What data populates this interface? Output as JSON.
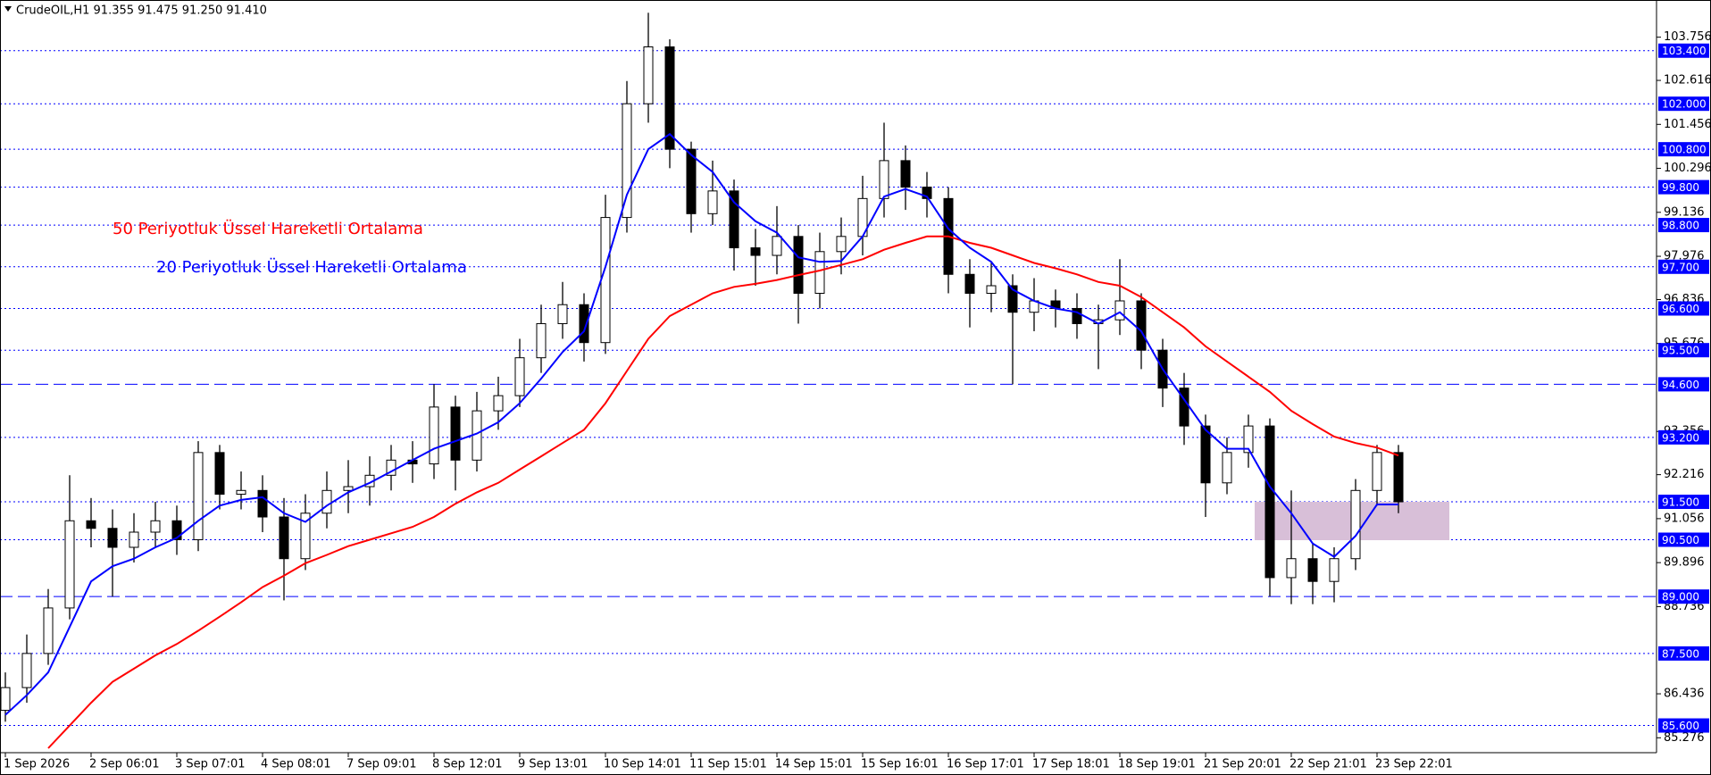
{
  "chart_data": {
    "type": "candlestick",
    "header": "CrudeOIL,H1  91.355 91.475 91.250 91.410",
    "categories": [
      "1 Sep 2026",
      null,
      null,
      null,
      "2 Sep 06:01",
      null,
      null,
      null,
      "3 Sep 07:01",
      null,
      null,
      null,
      "4 Sep 08:01",
      null,
      null,
      null,
      "7 Sep 09:01",
      null,
      null,
      null,
      "8 Sep 12:01",
      null,
      null,
      null,
      "9 Sep 13:01",
      null,
      null,
      null,
      "10 Sep 14:01",
      null,
      null,
      null,
      "11 Sep 15:01",
      null,
      null,
      null,
      "14 Sep 15:01",
      null,
      null,
      null,
      "15 Sep 16:01",
      null,
      null,
      null,
      "16 Sep 17:01",
      null,
      null,
      null,
      "17 Sep 18:01",
      null,
      null,
      null,
      "18 Sep 19:01",
      null,
      null,
      null,
      "21 Sep 20:01",
      null,
      null,
      null,
      "22 Sep 21:01",
      null,
      null,
      null,
      "23 Sep 22:01",
      null
    ],
    "open": [
      86.0,
      86.6,
      87.5,
      88.7,
      91.0,
      90.8,
      90.3,
      90.7,
      91.0,
      90.5,
      92.8,
      91.7,
      91.8,
      91.1,
      90.0,
      91.2,
      91.8,
      91.9,
      92.2,
      92.6,
      92.5,
      94.0,
      92.6,
      93.9,
      94.3,
      95.3,
      96.2,
      96.7,
      95.7,
      99.0,
      102.0,
      103.5,
      100.8,
      99.1,
      99.7,
      98.2,
      98.0,
      98.5,
      97.0,
      98.1,
      98.5,
      99.5,
      100.5,
      99.8,
      99.5,
      97.5,
      97.0,
      97.2,
      96.5,
      96.8,
      96.6,
      96.2,
      96.3,
      96.8,
      95.5,
      94.5,
      93.5,
      92.0,
      92.8,
      93.5,
      89.5,
      90.0,
      89.4,
      90.0,
      91.8,
      92.8
    ],
    "high": [
      87.0,
      88.0,
      89.2,
      92.2,
      91.6,
      91.3,
      91.2,
      91.5,
      91.4,
      93.1,
      93.0,
      92.3,
      92.2,
      91.6,
      91.7,
      92.3,
      92.6,
      92.7,
      93.0,
      93.1,
      94.6,
      94.3,
      94.4,
      94.8,
      95.8,
      96.7,
      97.3,
      97.0,
      99.6,
      102.6,
      104.4,
      103.7,
      101.0,
      100.5,
      100.0,
      98.7,
      99.3,
      98.8,
      98.6,
      99.0,
      100.1,
      101.5,
      100.9,
      100.2,
      99.8,
      97.9,
      97.8,
      97.5,
      97.4,
      97.1,
      97.0,
      96.7,
      97.9,
      97.0,
      95.8,
      94.9,
      93.8,
      93.2,
      93.8,
      93.7,
      91.8,
      90.4,
      90.3,
      92.1,
      93.0,
      93.0
    ],
    "low": [
      85.7,
      86.2,
      87.2,
      88.4,
      90.3,
      89.0,
      89.9,
      90.3,
      90.1,
      90.2,
      91.3,
      91.3,
      90.7,
      88.9,
      89.7,
      90.8,
      91.2,
      91.4,
      91.8,
      92.0,
      92.1,
      91.8,
      92.3,
      93.4,
      94.0,
      94.9,
      95.8,
      95.2,
      95.4,
      98.6,
      101.5,
      100.3,
      98.6,
      98.8,
      97.6,
      97.2,
      97.5,
      96.2,
      96.6,
      97.5,
      98.0,
      99.0,
      99.2,
      99.0,
      97.0,
      96.1,
      96.5,
      94.6,
      96.0,
      96.1,
      95.8,
      95.0,
      95.9,
      95.0,
      94.0,
      93.0,
      91.1,
      91.7,
      92.4,
      89.0,
      88.8,
      88.8,
      88.85,
      89.7,
      91.4,
      91.2
    ],
    "close": [
      86.6,
      87.5,
      88.7,
      91.0,
      90.8,
      90.3,
      90.7,
      91.0,
      90.5,
      92.8,
      91.7,
      91.8,
      91.1,
      90.0,
      91.2,
      91.8,
      91.9,
      92.2,
      92.6,
      92.5,
      94.0,
      92.6,
      93.9,
      94.3,
      95.3,
      96.2,
      96.7,
      95.7,
      99.0,
      102.0,
      103.5,
      100.8,
      99.1,
      99.7,
      98.2,
      98.0,
      98.5,
      97.0,
      98.1,
      98.5,
      99.5,
      100.5,
      99.8,
      99.5,
      97.5,
      97.0,
      97.2,
      96.5,
      96.8,
      96.6,
      96.2,
      96.3,
      96.8,
      95.5,
      94.5,
      93.5,
      92.0,
      92.8,
      93.5,
      89.5,
      90.0,
      89.4,
      90.0,
      91.8,
      92.8,
      91.5
    ],
    "up_color": "#ffffff",
    "down_color": "#000000",
    "series": [
      {
        "name": "50 Periyotluk Üssel Hareketli Ortalama",
        "color": "#ff0000",
        "values": [
          null,
          null,
          85.0,
          85.6,
          86.2,
          86.75,
          87.1,
          87.45,
          87.75,
          88.1,
          88.47,
          88.85,
          89.25,
          89.55,
          89.88,
          90.1,
          90.33,
          90.5,
          90.67,
          90.84,
          91.1,
          91.45,
          91.75,
          92.0,
          92.35,
          92.7,
          93.05,
          93.4,
          94.1,
          94.95,
          95.8,
          96.4,
          96.7,
          97.0,
          97.17,
          97.25,
          97.35,
          97.48,
          97.6,
          97.75,
          97.9,
          98.15,
          98.33,
          98.5,
          98.5,
          98.33,
          98.2,
          98.0,
          97.8,
          97.66,
          97.5,
          97.3,
          97.2,
          96.9,
          96.5,
          96.1,
          95.6,
          95.2,
          94.8,
          94.4,
          93.9,
          93.55,
          93.22,
          93.05,
          92.93,
          92.72
        ]
      },
      {
        "name": "20 Periyotluk Üssel Hareketli Ortalama",
        "color": "#0000ff",
        "values": [
          85.88,
          86.4,
          87.0,
          88.2,
          89.4,
          89.8,
          90.0,
          90.3,
          90.55,
          91.0,
          91.4,
          91.55,
          91.62,
          91.2,
          90.97,
          91.4,
          91.75,
          92.0,
          92.3,
          92.6,
          92.9,
          93.1,
          93.3,
          93.6,
          94.1,
          94.75,
          95.45,
          96.0,
          97.7,
          99.6,
          100.8,
          101.2,
          100.65,
          100.2,
          99.4,
          98.9,
          98.6,
          97.95,
          97.83,
          97.85,
          98.5,
          99.55,
          99.75,
          99.55,
          98.7,
          98.2,
          97.83,
          97.1,
          96.8,
          96.6,
          96.5,
          96.2,
          96.5,
          96.0,
          95.0,
          94.2,
          93.4,
          92.9,
          92.9,
          91.9,
          91.2,
          90.4,
          90.05,
          90.6,
          91.43,
          91.43
        ]
      }
    ],
    "ylim": [
      84.93,
      104.68
    ],
    "yticks": [
      {
        "value": 103.756,
        "label": "103.756"
      },
      {
        "value": 102.616,
        "label": "102.616"
      },
      101.456,
      100.296,
      99.136,
      97.976,
      96.836,
      95.676,
      93.356,
      92.216,
      91.056,
      89.896,
      88.736,
      86.436,
      85.276
    ],
    "levels": [
      {
        "value": 103.4,
        "label": "103.400"
      },
      {
        "value": 102,
        "label": "102.000"
      },
      {
        "value": 100.8,
        "label": "100.800"
      },
      {
        "value": 99.8,
        "label": "99.800"
      },
      {
        "value": 98.8,
        "label": "98.800"
      },
      {
        "value": 97.7,
        "label": "97.700"
      },
      {
        "value": 96.6,
        "label": "96.600"
      },
      {
        "value": 95.5,
        "label": "95.500"
      },
      {
        "value": 93.2,
        "label": "93.200"
      },
      {
        "value": 91.5,
        "label": "91.500"
      },
      {
        "value": 90.5,
        "label": "90.500"
      },
      {
        "value": 87.5,
        "label": "87.500"
      },
      {
        "value": 85.6,
        "label": "85.600"
      }
    ],
    "dashed_levels": [
      {
        "value": 94.6,
        "label": "94.600"
      },
      {
        "value": 89,
        "label": "89.000"
      }
    ],
    "level_color": "#0000ff"
  }
}
